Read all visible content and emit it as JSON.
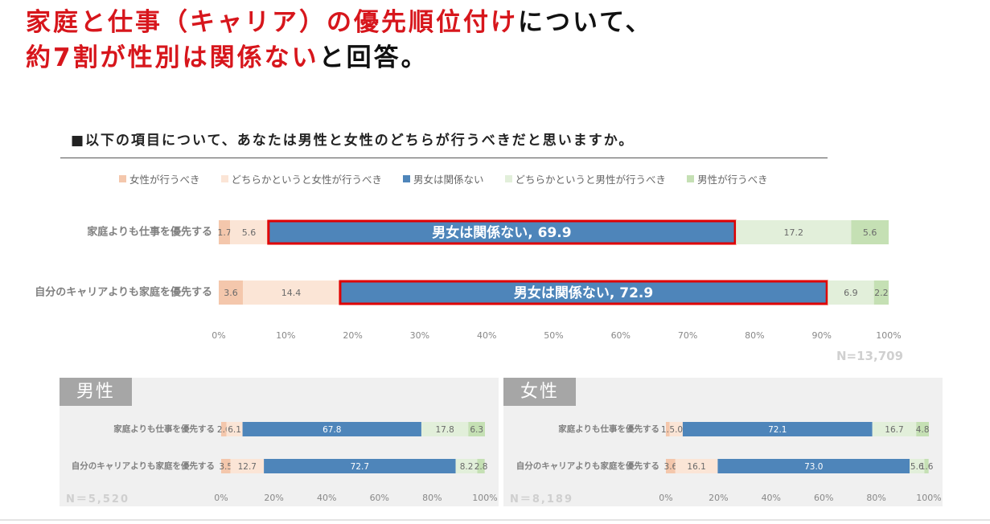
{
  "headline": {
    "line1": [
      {
        "text": "家庭と仕事（キャリア）の優先順位付け",
        "color": "red"
      },
      {
        "text": "について、",
        "color": "black"
      }
    ],
    "line2": [
      {
        "text": "約7割が性別は関係ない",
        "color": "red"
      },
      {
        "text": "と回答。",
        "color": "black"
      }
    ]
  },
  "question": "■以下の項目について、あなたは男性と女性のどちらが行うべきだと思いますか。",
  "legend": [
    {
      "label": "女性が行うべき",
      "color": "#f4c7ac"
    },
    {
      "label": "どちらかというと女性が行うべき",
      "color": "#fbe5d6"
    },
    {
      "label": "男女は関係ない",
      "color": "#4e85ba"
    },
    {
      "label": "どちらかというと男性が行うべき",
      "color": "#e2efda"
    },
    {
      "label": "男性が行うべき",
      "color": "#c5e0b4"
    }
  ],
  "colors": {
    "highlight": "#e00000",
    "seg_text_dark": "#6a6a6a",
    "seg_text_light": "#ffffff"
  },
  "chart_data": [
    {
      "id": "main",
      "type": "bar",
      "orientation": "horizontal",
      "stacked": true,
      "categories": [
        "家庭よりも仕事を優先する",
        "自分のキャリアよりも家庭を優先する"
      ],
      "series": [
        {
          "name": "女性が行うべき",
          "values": [
            1.7,
            3.6
          ]
        },
        {
          "name": "どちらかというと女性が行うべき",
          "values": [
            5.6,
            14.4
          ]
        },
        {
          "name": "男女は関係ない",
          "values": [
            69.9,
            72.9
          ]
        },
        {
          "name": "どちらかというと男性が行うべき",
          "values": [
            17.2,
            6.9
          ]
        },
        {
          "name": "男性が行うべき",
          "values": [
            5.6,
            2.2
          ]
        }
      ],
      "highlight_labels": [
        "男女は関係ない, 69.9",
        "男女は関係ない, 72.9"
      ],
      "xlim": [
        0,
        100
      ],
      "ticks": [
        "0%",
        "10%",
        "20%",
        "30%",
        "40%",
        "50%",
        "60%",
        "70%",
        "80%",
        "90%",
        "100%"
      ],
      "n": "N=13,709"
    },
    {
      "id": "male",
      "type": "bar",
      "orientation": "horizontal",
      "stacked": true,
      "title": "男性",
      "categories": [
        "家庭よりも仕事を優先する",
        "自分のキャリアよりも家庭を優先する"
      ],
      "series": [
        {
          "name": "女性が行うべき",
          "values": [
            2.0,
            3.5
          ]
        },
        {
          "name": "どちらかというと女性が行うべき",
          "values": [
            6.1,
            12.7
          ]
        },
        {
          "name": "男女は関係ない",
          "values": [
            67.8,
            72.7
          ]
        },
        {
          "name": "どちらかというと男性が行うべき",
          "values": [
            17.8,
            8.2
          ]
        },
        {
          "name": "男性が行うべき",
          "values": [
            6.3,
            2.8
          ]
        }
      ],
      "xlim": [
        0,
        100
      ],
      "ticks": [
        "0%",
        "20%",
        "40%",
        "60%",
        "80%",
        "100%"
      ],
      "n": "N＝5,520"
    },
    {
      "id": "female",
      "type": "bar",
      "orientation": "horizontal",
      "stacked": true,
      "title": "女性",
      "categories": [
        "家庭よりも仕事を優先する",
        "自分のキャリアよりも家庭を優先する"
      ],
      "series": [
        {
          "name": "女性が行うべき",
          "values": [
            1.4,
            3.6
          ]
        },
        {
          "name": "どちらかというと女性が行うべき",
          "values": [
            5.0,
            16.1
          ]
        },
        {
          "name": "男女は関係ない",
          "values": [
            72.1,
            73.0
          ]
        },
        {
          "name": "どちらかというと男性が行うべき",
          "values": [
            16.7,
            5.6
          ]
        },
        {
          "name": "男性が行うべき",
          "values": [
            4.8,
            1.6
          ]
        }
      ],
      "xlim": [
        0,
        100
      ],
      "ticks": [
        "0%",
        "20%",
        "40%",
        "60%",
        "80%",
        "100%"
      ],
      "n": "N＝8,189"
    }
  ]
}
